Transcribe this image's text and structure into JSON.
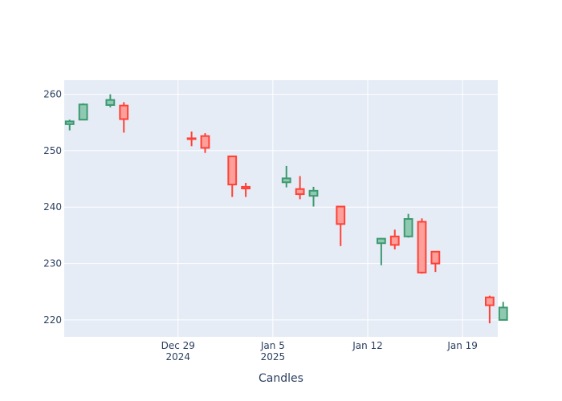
{
  "chart_data": {
    "type": "candlestick",
    "title": "",
    "xlabel": "Candles",
    "ylabel": "",
    "ylim": [
      217.0,
      262.5
    ],
    "grid": true,
    "legend": "none",
    "colors": {
      "plot_bg": "#e5ecf6",
      "grid": "#ffffff",
      "increasing": "#3d9970",
      "increasing_fill": "#8fc9b2",
      "decreasing": "#ff4136",
      "decreasing_fill": "#ff9f9a",
      "text": "#2a3f5f"
    },
    "y_ticks": [
      220,
      230,
      240,
      250,
      260
    ],
    "x_ticks": [
      {
        "day": 8,
        "label": "Dec 29",
        "sublabel": "2024"
      },
      {
        "day": 15,
        "label": "Jan 5",
        "sublabel": "2025"
      },
      {
        "day": 22,
        "label": "Jan 12",
        "sublabel": ""
      },
      {
        "day": 29,
        "label": "Jan 19",
        "sublabel": ""
      }
    ],
    "x_range_days": [
      -0.4,
      31.6
    ],
    "candles": [
      {
        "date": "2024-12-21",
        "day": 0,
        "open": 254.7,
        "high": 255.5,
        "low": 253.6,
        "close": 255.2
      },
      {
        "date": "2024-12-22",
        "day": 1,
        "open": 255.5,
        "high": 258.4,
        "low": 255.5,
        "close": 258.2
      },
      {
        "date": "2024-12-24",
        "day": 3,
        "open": 258.1,
        "high": 260.0,
        "low": 257.7,
        "close": 259.0
      },
      {
        "date": "2024-12-25",
        "day": 4,
        "open": 258.0,
        "high": 258.6,
        "low": 253.2,
        "close": 255.6
      },
      {
        "date": "2024-12-30",
        "day": 9,
        "open": 252.2,
        "high": 253.4,
        "low": 250.8,
        "close": 252.1
      },
      {
        "date": "2024-12-31",
        "day": 10,
        "open": 252.6,
        "high": 253.1,
        "low": 249.6,
        "close": 250.5
      },
      {
        "date": "2025-01-02",
        "day": 12,
        "open": 249.0,
        "high": 249.0,
        "low": 241.8,
        "close": 244.0
      },
      {
        "date": "2025-01-03",
        "day": 13,
        "open": 243.6,
        "high": 244.3,
        "low": 241.8,
        "close": 243.3
      },
      {
        "date": "2025-01-06",
        "day": 16,
        "open": 244.4,
        "high": 247.3,
        "low": 243.5,
        "close": 245.1
      },
      {
        "date": "2025-01-07",
        "day": 17,
        "open": 243.2,
        "high": 245.5,
        "low": 241.4,
        "close": 242.3
      },
      {
        "date": "2025-01-08",
        "day": 18,
        "open": 242.0,
        "high": 243.6,
        "low": 240.1,
        "close": 242.9
      },
      {
        "date": "2025-01-10",
        "day": 20,
        "open": 240.1,
        "high": 240.1,
        "low": 233.1,
        "close": 237.0
      },
      {
        "date": "2025-01-13",
        "day": 23,
        "open": 233.6,
        "high": 234.5,
        "low": 229.7,
        "close": 234.4
      },
      {
        "date": "2025-01-14",
        "day": 24,
        "open": 234.8,
        "high": 236.0,
        "low": 232.5,
        "close": 233.3
      },
      {
        "date": "2025-01-15",
        "day": 25,
        "open": 234.8,
        "high": 238.8,
        "low": 234.6,
        "close": 237.9
      },
      {
        "date": "2025-01-16",
        "day": 26,
        "open": 237.4,
        "high": 238.0,
        "low": 228.2,
        "close": 228.4
      },
      {
        "date": "2025-01-17",
        "day": 27,
        "open": 232.1,
        "high": 232.1,
        "low": 228.5,
        "close": 230.0
      },
      {
        "date": "2025-01-21",
        "day": 31,
        "open": 224.0,
        "high": 224.3,
        "low": 219.4,
        "close": 222.6
      },
      {
        "date": "2025-01-22",
        "day": 32,
        "open": 220.0,
        "high": 223.2,
        "low": 220.0,
        "close": 222.2
      }
    ]
  }
}
